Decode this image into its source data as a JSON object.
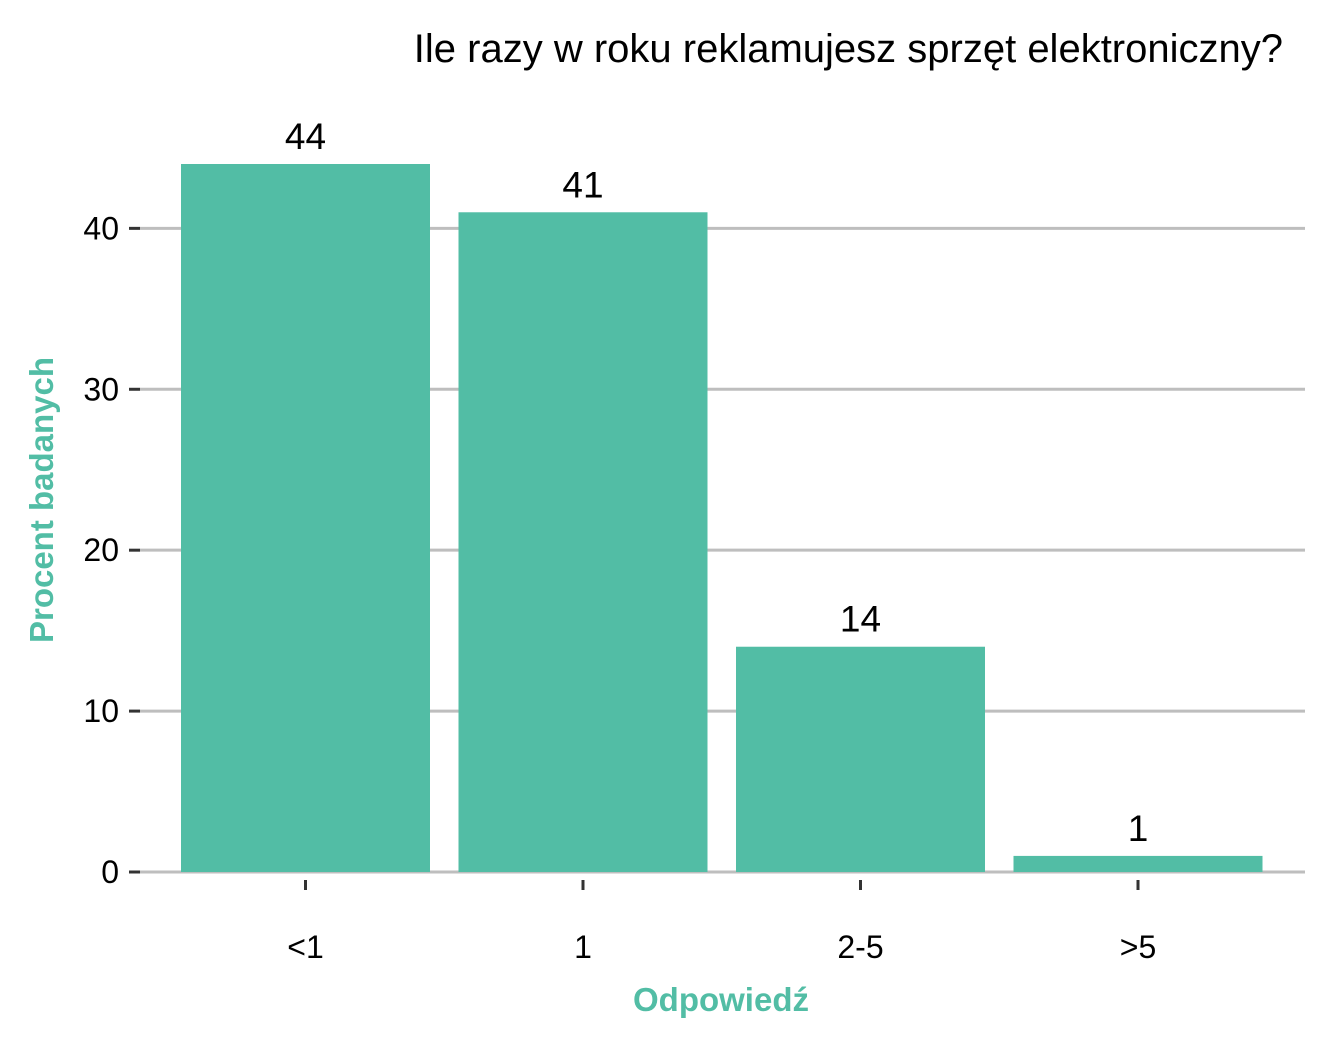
{
  "chart_data": {
    "type": "bar",
    "title": "Ile razy w roku reklamujesz sprzęt elektroniczny?",
    "xlabel": "Odpowiedź",
    "ylabel": "Procent badanych",
    "categories": [
      "<1",
      "1",
      "2-5",
      ">5"
    ],
    "values": [
      44,
      41,
      14,
      1
    ],
    "data_labels": [
      "44",
      "41",
      "14",
      "1"
    ],
    "ylim": [
      0,
      44
    ],
    "y_ticks": [
      0,
      10,
      20,
      30,
      40
    ],
    "y_tick_labels": [
      "0",
      "10",
      "20",
      "30",
      "40"
    ],
    "grid": true,
    "legend": "none",
    "colors": {
      "bar": "#52bda5",
      "axis_title": "#52bda5",
      "grid": "#bebebe"
    }
  }
}
